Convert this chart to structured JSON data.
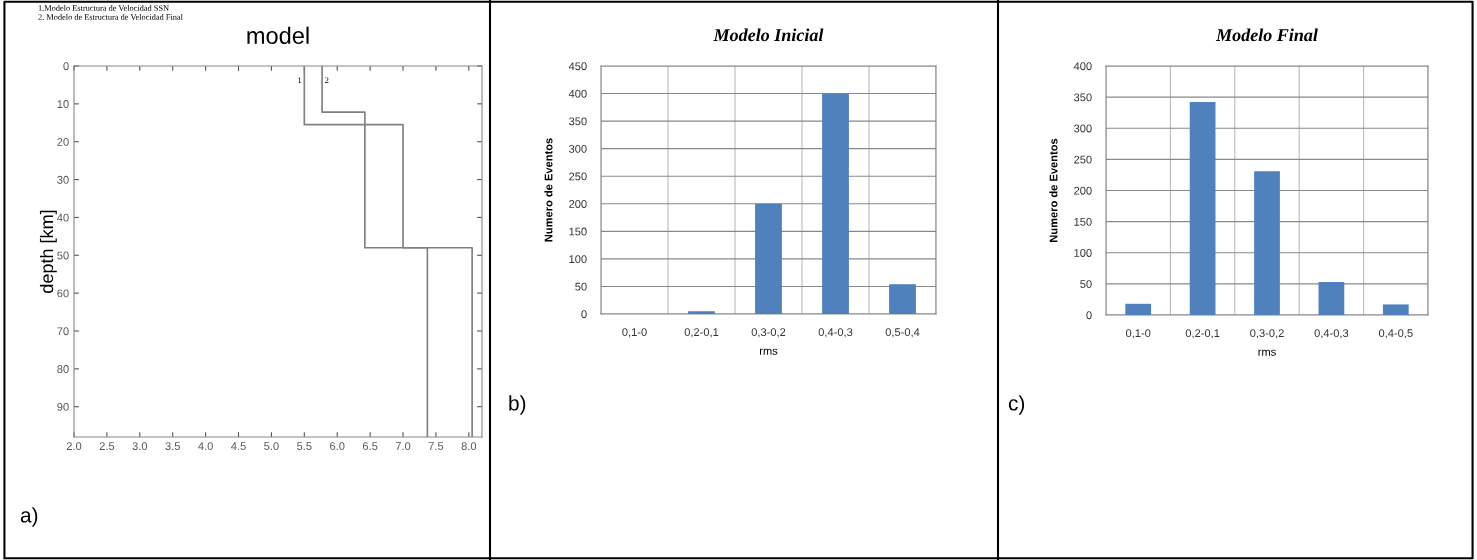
{
  "chart_data": [
    {
      "type": "line",
      "title": "model",
      "ylabel": "depth [km]",
      "series": [
        {
          "name": "1",
          "color": "#808080",
          "x": [
            5.5,
            5.5,
            7.0,
            7.0,
            8.05,
            8.05
          ],
          "values": [
            0,
            15.5,
            15.5,
            48,
            48,
            98
          ]
        },
        {
          "name": "2",
          "color": "#808080",
          "x": [
            5.77,
            5.77,
            6.42,
            6.42,
            7.37,
            7.37
          ],
          "values": [
            0,
            12.2,
            12.2,
            48,
            48,
            98
          ]
        }
      ],
      "xlim": [
        2.0,
        8.2
      ],
      "xticks": [
        {
          "value": 2.0,
          "label": "2.0"
        },
        2.5,
        {
          "value": 3.0,
          "label": "3.0"
        },
        3.5,
        {
          "value": 4.0,
          "label": "4.0"
        },
        4.5,
        {
          "value": 5.0,
          "label": "5.0"
        },
        5.5,
        {
          "value": 6.0,
          "label": "6.0"
        },
        6.5,
        {
          "value": 7.0,
          "label": "7.0"
        },
        7.5,
        {
          "value": 8.0,
          "label": "8.0"
        }
      ],
      "ylim": [
        98,
        0
      ],
      "yticks": [
        0,
        10,
        20,
        30,
        40,
        50,
        60,
        70,
        80,
        90
      ],
      "grid": false,
      "legend": false,
      "marker": "none",
      "line_style": "solid",
      "annotations": [
        "1.Modelo Estructura de Velocidad SSN",
        "2. Modelo de Estructura de Velocidad Final",
        "a)"
      ]
    },
    {
      "type": "bar",
      "title": "Modelo Inicial",
      "xlabel": "rms",
      "ylabel": "Numero de Eventos",
      "categories": [
        "0,1-0",
        "0,2-0,1",
        "0,3-0,2",
        "0,4-0,3",
        "0,5-0,4"
      ],
      "values": [
        0,
        5,
        200,
        400,
        54
      ],
      "color": "#4f81bd",
      "ylim": [
        0,
        450
      ],
      "yticks": [
        0,
        50,
        100,
        150,
        200,
        250,
        300,
        350,
        400,
        450
      ],
      "grid": true,
      "annotations": [
        "b)"
      ]
    },
    {
      "type": "bar",
      "title": "Modelo Final",
      "xlabel": "rms",
      "ylabel": "Numero de Eventos",
      "categories": [
        "0,1-0",
        "0,2-0,1",
        "0,3-0,2",
        "0,4-0,3",
        "0,4-0,5"
      ],
      "values": [
        18,
        342,
        231,
        53,
        17
      ],
      "color": "#4f81bd",
      "ylim": [
        0,
        400
      ],
      "yticks": [
        0,
        50,
        100,
        150,
        200,
        250,
        300,
        350,
        400
      ],
      "grid": true,
      "annotations": [
        "c)"
      ]
    }
  ]
}
